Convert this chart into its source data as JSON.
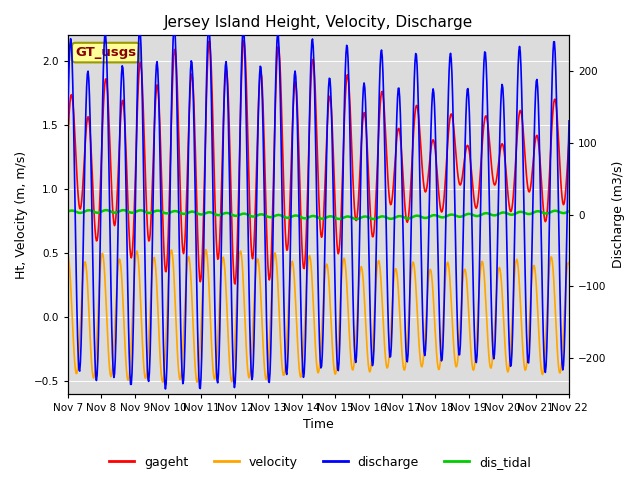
{
  "title": "Jersey Island Height, Velocity, Discharge",
  "xlabel": "Time",
  "ylabel_left": "Ht, Velocity (m, m/s)",
  "ylabel_right": "Discharge (m3/s)",
  "ylim_left": [
    -0.6,
    2.2
  ],
  "ylim_right": [
    -250,
    250
  ],
  "xtick_labels": [
    "Nov 7",
    "Nov 8",
    "Nov 9",
    "Nov 10",
    "Nov 11",
    "Nov 12",
    "Nov 13",
    "Nov 14",
    "Nov 15",
    "Nov 16",
    "Nov 17",
    "Nov 18",
    "Nov 19",
    "Nov 20",
    "Nov 21",
    "Nov 22"
  ],
  "legend_label": "GT_usgs",
  "legend_text_color": "#8B0000",
  "legend_bg_color": "#FFFF99",
  "legend_border_color": "#999900",
  "line_colors": {
    "gageht": "#FF0000",
    "velocity": "#FFA500",
    "discharge": "#0000FF",
    "dis_tidal": "#00CC00"
  },
  "line_widths": {
    "gageht": 1.2,
    "velocity": 1.2,
    "discharge": 1.2,
    "dis_tidal": 1.8
  },
  "bg_color": "#DCDCDC",
  "title_fontsize": 11,
  "axis_fontsize": 9,
  "tick_fontsize": 7.5,
  "legend_fontsize": 9
}
